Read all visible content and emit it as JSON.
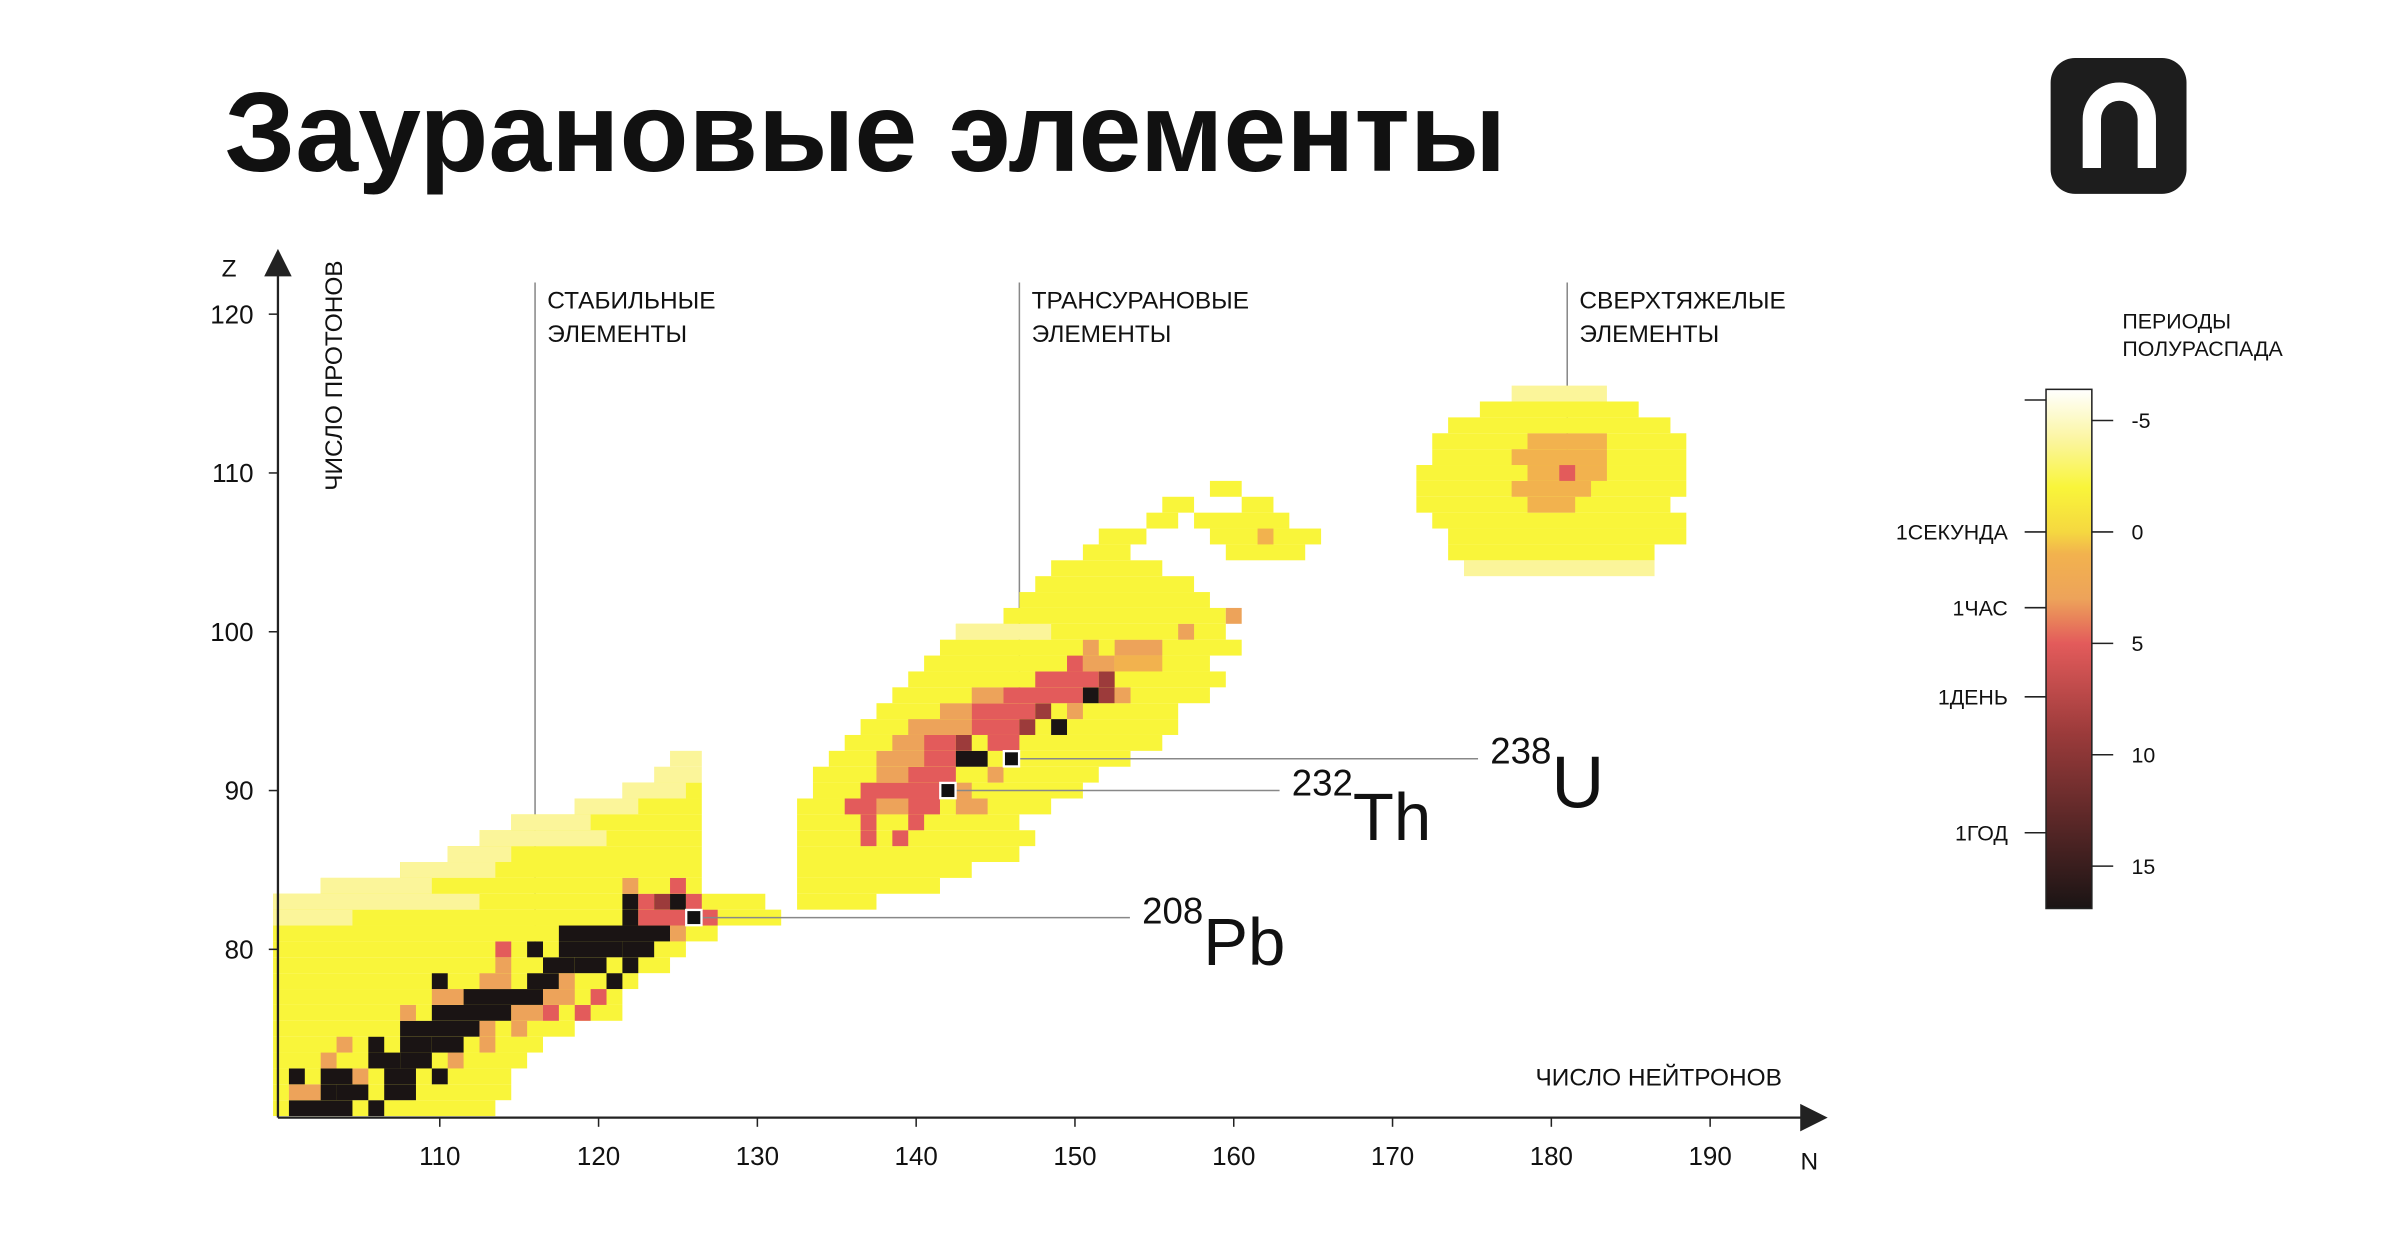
{
  "chart_data": {
    "type": "heatmap",
    "title": "Заурановые элементы",
    "x_label": "ЧИСЛО НЕЙТРОНОВ",
    "x_symbol": "N",
    "y_label": "ЧИСЛО ПРОТОНОВ",
    "y_symbol": "Z",
    "xlim": [
      100,
      197
    ],
    "xticks": [
      110,
      120,
      130,
      140,
      150,
      160,
      170,
      180,
      190
    ],
    "ylim": [
      69.4,
      124
    ],
    "yticks": [
      80,
      90,
      100,
      110,
      120
    ],
    "colorscale": [
      [
        -6.4,
        "#ffffff"
      ],
      [
        -4,
        "#fbf59a"
      ],
      [
        -2,
        "#f9f53a"
      ],
      [
        0,
        "#f5d840"
      ],
      [
        1,
        "#f2b24e"
      ],
      [
        3,
        "#eda35a"
      ],
      [
        5,
        "#e35b5b"
      ],
      [
        9,
        "#9c3b3b"
      ],
      [
        17,
        "#1a1414"
      ]
    ],
    "colorbar": {
      "title_lines": [
        "ПЕРИОДЫ",
        "ПОЛУРАСПАДА"
      ],
      "lim": [
        -6.4,
        16.9
      ],
      "ticks": [
        -5,
        0,
        5,
        10,
        15
      ],
      "time_ticks": [
        {
          "value": 0,
          "label": "1СЕКУНДА"
        },
        {
          "value": 3.4,
          "label": "1ЧАС"
        },
        {
          "value": 7.4,
          "label": "1ДЕНЬ"
        },
        {
          "value": 13.5,
          "label": "1ГОД"
        }
      ]
    },
    "annotations": [
      {
        "lines": [
          "СТАБИЛЬНЫЕ",
          "ЭЛЕМЕНТЫ"
        ]
      },
      {
        "lines": [
          "ТРАНСУРАНОВЫЕ",
          "ЭЛЕМЕНТЫ"
        ]
      },
      {
        "lines": [
          "СВЕРХТЯЖЕЛЫЕ",
          "ЭЛЕМЕНТЫ"
        ]
      }
    ],
    "isotopes": [
      {
        "mass": "208",
        "symbol": "Pb",
        "n": 126,
        "z": 82
      },
      {
        "mass": "232",
        "symbol": "Th",
        "n": 142,
        "z": 90
      },
      {
        "mass": "238",
        "symbol": "U",
        "n": 146,
        "z": 92
      }
    ],
    "rows": [
      {
        "z": 70,
        "runs": [
          [
            100,
            113,
            -2
          ],
          [
            101,
            104,
            17
          ],
          [
            106,
            106,
            17
          ]
        ]
      },
      {
        "z": 71,
        "runs": [
          [
            100,
            114,
            -2
          ],
          [
            101,
            102,
            3
          ],
          [
            103,
            103,
            17
          ],
          [
            104,
            105,
            17
          ],
          [
            107,
            108,
            17
          ]
        ]
      },
      {
        "z": 72,
        "runs": [
          [
            100,
            114,
            -2
          ],
          [
            101,
            101,
            17
          ],
          [
            103,
            104,
            17
          ],
          [
            105,
            105,
            3
          ],
          [
            107,
            108,
            17
          ],
          [
            110,
            110,
            17
          ]
        ]
      },
      {
        "z": 73,
        "runs": [
          [
            100,
            115,
            -2
          ],
          [
            103,
            103,
            3
          ],
          [
            106,
            107,
            17
          ],
          [
            108,
            109,
            17
          ],
          [
            111,
            111,
            3
          ]
        ]
      },
      {
        "z": 74,
        "runs": [
          [
            100,
            116,
            -2
          ],
          [
            104,
            104,
            3
          ],
          [
            106,
            106,
            17
          ],
          [
            108,
            109,
            17
          ],
          [
            110,
            111,
            17
          ],
          [
            113,
            113,
            3
          ]
        ]
      },
      {
        "z": 75,
        "runs": [
          [
            100,
            118,
            -2
          ],
          [
            108,
            112,
            17
          ],
          [
            113,
            113,
            3
          ],
          [
            115,
            115,
            3
          ]
        ]
      },
      {
        "z": 76,
        "runs": [
          [
            100,
            121,
            -2
          ],
          [
            108,
            108,
            3
          ],
          [
            110,
            114,
            17
          ],
          [
            115,
            116,
            3
          ],
          [
            117,
            117,
            5
          ],
          [
            119,
            119,
            5
          ]
        ]
      },
      {
        "z": 77,
        "runs": [
          [
            100,
            121,
            -2
          ],
          [
            110,
            111,
            3
          ],
          [
            112,
            116,
            17
          ],
          [
            117,
            118,
            3
          ],
          [
            120,
            120,
            5
          ]
        ]
      },
      {
        "z": 78,
        "runs": [
          [
            100,
            122,
            -2
          ],
          [
            110,
            110,
            17
          ],
          [
            113,
            114,
            3
          ],
          [
            116,
            117,
            17
          ],
          [
            118,
            118,
            3
          ],
          [
            121,
            121,
            17
          ]
        ]
      },
      {
        "z": 79,
        "runs": [
          [
            100,
            124,
            -2
          ],
          [
            114,
            114,
            3
          ],
          [
            117,
            118,
            17
          ],
          [
            119,
            120,
            17
          ],
          [
            122,
            122,
            17
          ]
        ]
      },
      {
        "z": 80,
        "runs": [
          [
            100,
            125,
            -2
          ],
          [
            114,
            114,
            5
          ],
          [
            116,
            116,
            17
          ],
          [
            118,
            121,
            17
          ],
          [
            122,
            123,
            17
          ]
        ]
      },
      {
        "z": 81,
        "runs": [
          [
            100,
            127,
            -2
          ],
          [
            118,
            124,
            17
          ],
          [
            125,
            125,
            3
          ]
        ]
      },
      {
        "z": 82,
        "runs": [
          [
            100,
            131,
            -2
          ],
          [
            100,
            104,
            -4
          ],
          [
            122,
            122,
            17
          ],
          [
            123,
            125,
            5
          ],
          [
            126,
            126,
            17
          ],
          [
            127,
            127,
            5
          ]
        ]
      },
      {
        "z": 83,
        "runs": [
          [
            100,
            130,
            -2
          ],
          [
            100,
            112,
            -4
          ],
          [
            122,
            122,
            17
          ],
          [
            123,
            123,
            5
          ],
          [
            124,
            124,
            9
          ],
          [
            125,
            125,
            17
          ],
          [
            126,
            126,
            5
          ],
          [
            133,
            137,
            -2
          ]
        ]
      },
      {
        "z": 84,
        "runs": [
          [
            103,
            126,
            -2
          ],
          [
            103,
            109,
            -4
          ],
          [
            122,
            122,
            3
          ],
          [
            125,
            125,
            5
          ],
          [
            133,
            141,
            -2
          ]
        ]
      },
      {
        "z": 85,
        "runs": [
          [
            108,
            126,
            -2
          ],
          [
            108,
            113,
            -4
          ],
          [
            133,
            143,
            -2
          ]
        ]
      },
      {
        "z": 86,
        "runs": [
          [
            111,
            126,
            -2
          ],
          [
            111,
            114,
            -4
          ],
          [
            133,
            146,
            -2
          ]
        ]
      },
      {
        "z": 87,
        "runs": [
          [
            113,
            126,
            -2
          ],
          [
            113,
            120,
            -4
          ],
          [
            133,
            147,
            -2
          ],
          [
            137,
            137,
            5
          ],
          [
            139,
            139,
            5
          ]
        ]
      },
      {
        "z": 88,
        "runs": [
          [
            115,
            126,
            -2
          ],
          [
            115,
            119,
            -4
          ],
          [
            133,
            146,
            -2
          ],
          [
            137,
            137,
            5
          ],
          [
            140,
            140,
            5
          ]
        ]
      },
      {
        "z": 89,
        "runs": [
          [
            119,
            126,
            -2
          ],
          [
            119,
            122,
            -4
          ],
          [
            133,
            148,
            -2
          ],
          [
            136,
            137,
            5
          ],
          [
            138,
            139,
            3
          ],
          [
            140,
            141,
            5
          ],
          [
            143,
            144,
            3
          ]
        ]
      },
      {
        "z": 90,
        "runs": [
          [
            122,
            126,
            -2
          ],
          [
            122,
            125,
            -4
          ],
          [
            134,
            150,
            -2
          ],
          [
            137,
            141,
            5
          ],
          [
            142,
            142,
            17
          ],
          [
            143,
            143,
            3
          ]
        ]
      },
      {
        "z": 91,
        "runs": [
          [
            124,
            126,
            -4
          ],
          [
            134,
            151,
            -2
          ],
          [
            138,
            139,
            3
          ],
          [
            140,
            142,
            5
          ],
          [
            145,
            145,
            3
          ]
        ]
      },
      {
        "z": 92,
        "runs": [
          [
            125,
            126,
            -4
          ],
          [
            135,
            153,
            -2
          ],
          [
            138,
            140,
            3
          ],
          [
            141,
            142,
            5
          ],
          [
            143,
            144,
            17
          ],
          [
            146,
            146,
            17
          ]
        ]
      },
      {
        "z": 93,
        "runs": [
          [
            136,
            155,
            -2
          ],
          [
            139,
            140,
            3
          ],
          [
            141,
            142,
            5
          ],
          [
            143,
            143,
            9
          ],
          [
            145,
            146,
            5
          ]
        ]
      },
      {
        "z": 94,
        "runs": [
          [
            137,
            156,
            -2
          ],
          [
            140,
            143,
            3
          ],
          [
            144,
            146,
            5
          ],
          [
            147,
            147,
            9
          ],
          [
            149,
            149,
            17
          ]
        ]
      },
      {
        "z": 95,
        "runs": [
          [
            138,
            156,
            -2
          ],
          [
            142,
            143,
            3
          ],
          [
            144,
            147,
            5
          ],
          [
            148,
            148,
            9
          ],
          [
            150,
            150,
            3
          ]
        ]
      },
      {
        "z": 96,
        "runs": [
          [
            139,
            158,
            -2
          ],
          [
            144,
            145,
            3
          ],
          [
            146,
            150,
            5
          ],
          [
            151,
            151,
            17
          ],
          [
            152,
            152,
            9
          ],
          [
            153,
            153,
            3
          ]
        ]
      },
      {
        "z": 97,
        "runs": [
          [
            140,
            159,
            -2
          ],
          [
            148,
            151,
            5
          ],
          [
            152,
            152,
            9
          ]
        ]
      },
      {
        "z": 98,
        "runs": [
          [
            141,
            158,
            -2
          ],
          [
            150,
            150,
            5
          ],
          [
            151,
            152,
            3
          ],
          [
            153,
            155,
            1
          ]
        ]
      },
      {
        "z": 99,
        "runs": [
          [
            142,
            160,
            -2
          ],
          [
            151,
            151,
            3
          ],
          [
            153,
            155,
            3
          ]
        ]
      },
      {
        "z": 100,
        "runs": [
          [
            143,
            159,
            -2
          ],
          [
            143,
            148,
            -4
          ],
          [
            157,
            157,
            3
          ]
        ]
      },
      {
        "z": 101,
        "runs": [
          [
            146,
            159,
            -2
          ],
          [
            160,
            160,
            3
          ]
        ]
      },
      {
        "z": 102,
        "runs": [
          [
            147,
            158,
            -2
          ]
        ]
      },
      {
        "z": 103,
        "runs": [
          [
            148,
            157,
            -2
          ]
        ]
      },
      {
        "z": 104,
        "runs": [
          [
            149,
            155,
            -2
          ],
          [
            175,
            186,
            -4
          ]
        ]
      },
      {
        "z": 105,
        "runs": [
          [
            151,
            153,
            -2
          ],
          [
            160,
            164,
            -2
          ],
          [
            174,
            186,
            -2
          ]
        ]
      },
      {
        "z": 106,
        "runs": [
          [
            152,
            154,
            -2
          ],
          [
            159,
            165,
            -2
          ],
          [
            162,
            162,
            1
          ],
          [
            174,
            188,
            -2
          ]
        ]
      },
      {
        "z": 107,
        "runs": [
          [
            155,
            156,
            -2
          ],
          [
            158,
            163,
            -2
          ],
          [
            173,
            188,
            -2
          ]
        ]
      },
      {
        "z": 108,
        "runs": [
          [
            156,
            157,
            -2
          ],
          [
            161,
            162,
            -2
          ],
          [
            172,
            187,
            -2
          ],
          [
            179,
            181,
            1
          ]
        ]
      },
      {
        "z": 109,
        "runs": [
          [
            159,
            160,
            -2
          ],
          [
            172,
            188,
            -2
          ],
          [
            178,
            182,
            1
          ]
        ]
      },
      {
        "z": 110,
        "runs": [
          [
            172,
            188,
            -2
          ],
          [
            179,
            183,
            1
          ],
          [
            181,
            181,
            5
          ]
        ]
      },
      {
        "z": 111,
        "runs": [
          [
            173,
            188,
            -2
          ],
          [
            178,
            183,
            1
          ]
        ]
      },
      {
        "z": 112,
        "runs": [
          [
            173,
            188,
            -2
          ],
          [
            179,
            183,
            1
          ]
        ]
      },
      {
        "z": 113,
        "runs": [
          [
            174,
            187,
            -2
          ]
        ]
      },
      {
        "z": 114,
        "runs": [
          [
            176,
            185,
            -2
          ]
        ]
      },
      {
        "z": 115,
        "runs": [
          [
            178,
            183,
            -4
          ]
        ]
      }
    ]
  }
}
